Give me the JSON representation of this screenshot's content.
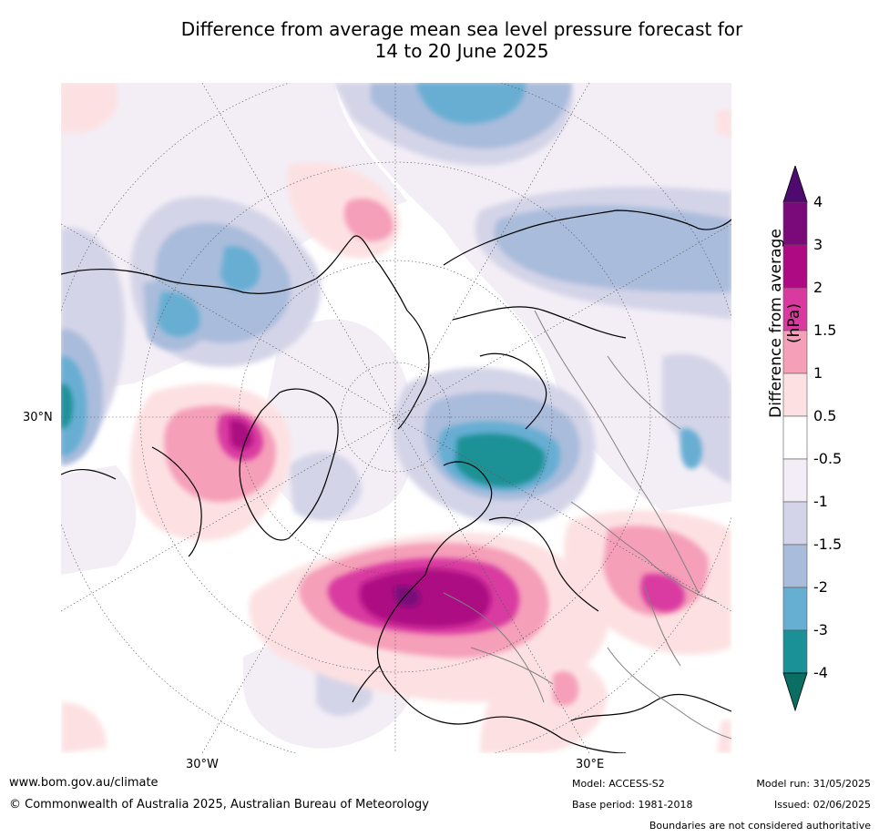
{
  "title_line1": "Difference from average mean sea level pressure forecast for",
  "title_line2": "14 to 20 June 2025",
  "axis": {
    "lat_label": "30°N",
    "lon_west": "30°W",
    "lon_east": "30°E"
  },
  "colorbar": {
    "title": "Difference from average (hPa)",
    "ticks": [
      "4",
      "3",
      "2",
      "1.5",
      "1",
      "0.5",
      "-0.5",
      "-1",
      "-1.5",
      "-2",
      "-3",
      "-4"
    ],
    "colors": [
      "#4f0a6f",
      "#7a0a7a",
      "#ad0a83",
      "#d93aa0",
      "#f59fb9",
      "#fde1e2",
      "#ffffff",
      "#f3eef6",
      "#d4d4e8",
      "#a9bcdb",
      "#67aed3",
      "#1a9196",
      "#0a6e63"
    ]
  },
  "footer": {
    "website": "www.bom.gov.au/climate",
    "copyright": "© Commonwealth of Australia 2025, Australian Bureau of Meteorology",
    "model": "Model: ACCESS-S2",
    "base_period": "Base period: 1981-2018",
    "model_run": "Model run: 31/05/2025",
    "issued": "Issued: 02/06/2025",
    "boundaries": "Boundaries are not considered authoritative"
  }
}
